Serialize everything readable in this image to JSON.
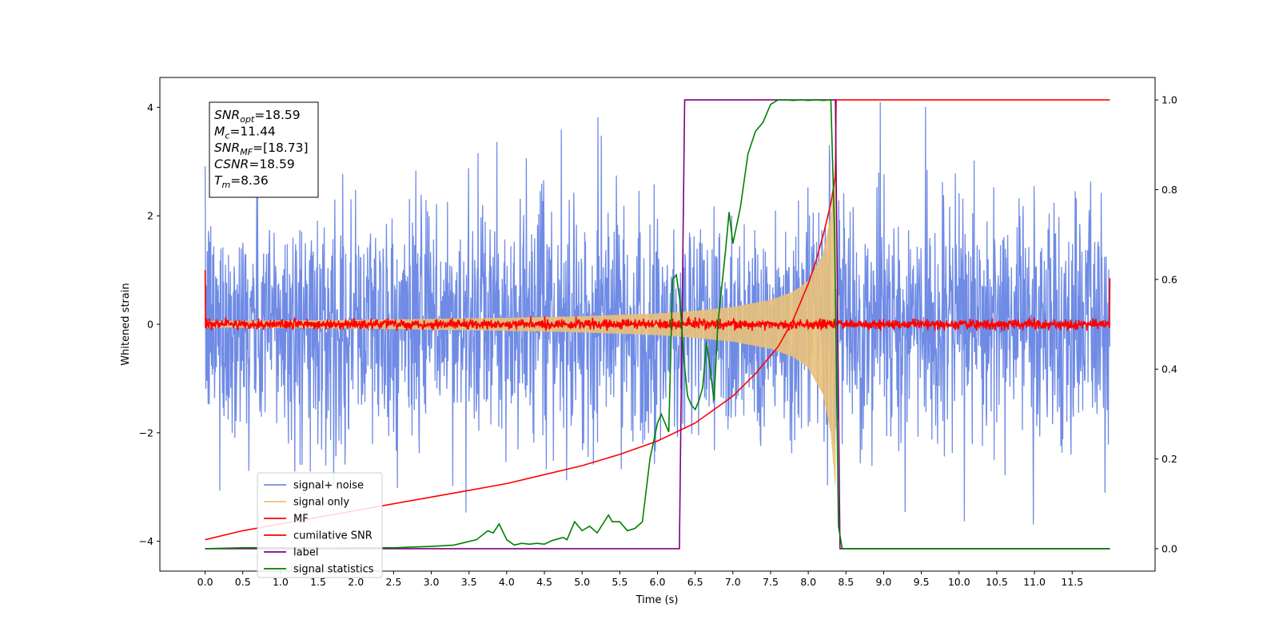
{
  "chart_data": {
    "type": "line",
    "title": "",
    "xlabel": "Time (s)",
    "ylabel": "Whitened strain",
    "y2label": "",
    "xlim": [
      -0.6,
      12.6
    ],
    "ylim": [
      -4.55,
      4.55
    ],
    "y2lim": [
      -0.05,
      1.05
    ],
    "x_ticks": [
      "0.0",
      "0.5",
      "1.0",
      "1.5",
      "2.0",
      "2.5",
      "3.0",
      "3.5",
      "4.0",
      "4.5",
      "5.0",
      "5.5",
      "6.0",
      "6.5",
      "7.0",
      "7.5",
      "8.0",
      "8.5",
      "9.0",
      "9.5",
      "10.0",
      "10.5",
      "11.0",
      "11.5"
    ],
    "y_ticks": [
      "−4",
      "−2",
      "0",
      "2",
      "4"
    ],
    "y2_ticks": [
      "0.0",
      "0.2",
      "0.4",
      "0.6",
      "0.8",
      "1.0"
    ],
    "grid": false,
    "legend_position": "lower-left",
    "info_box": {
      "lines": [
        {
          "sym": "SNR",
          "sub": "opt",
          "value": "=18.59"
        },
        {
          "sym": "M",
          "sub": "c",
          "value": "=11.44"
        },
        {
          "sym": "SNR",
          "sub": "MF",
          "value": "=[18.73]"
        },
        {
          "sym": "CSNR",
          "sub": "",
          "value": "=18.59"
        },
        {
          "sym": "T",
          "sub": "m",
          "value": "=8.36"
        }
      ]
    },
    "series": [
      {
        "name": "signal+ noise",
        "axis": "left",
        "color": "#6f8be5",
        "description_values": {
          "x_start": 0.0,
          "x_end": 12.0,
          "typical_range": [
            -2.5,
            2.5
          ],
          "max_excursion": [
            -4.2,
            4.1
          ]
        }
      },
      {
        "name": "signal only",
        "axis": "left",
        "color": "#e8c07a",
        "envelope": {
          "x": [
            0.0,
            1.0,
            2.0,
            3.0,
            4.0,
            5.0,
            6.0,
            6.5,
            7.0,
            7.5,
            7.8,
            8.0,
            8.2,
            8.3,
            8.36,
            8.4
          ],
          "amp": [
            0.06,
            0.07,
            0.08,
            0.1,
            0.12,
            0.15,
            0.2,
            0.25,
            0.32,
            0.45,
            0.6,
            0.8,
            1.3,
            2.0,
            3.0,
            0.0
          ]
        }
      },
      {
        "name": "MF",
        "axis": "left",
        "color": "#ff0000",
        "description_values": {
          "x_start": 0.0,
          "x_end": 12.0,
          "start_value": 1.0,
          "end_value": 0.85,
          "typical_range": [
            -0.12,
            0.15
          ]
        }
      },
      {
        "name": "cumilative SNR",
        "axis": "right",
        "color": "#ff0000",
        "x": [
          0.0,
          0.5,
          1.0,
          1.5,
          2.0,
          2.5,
          3.0,
          3.5,
          4.0,
          4.5,
          5.0,
          5.5,
          6.0,
          6.5,
          7.0,
          7.3,
          7.6,
          7.8,
          8.0,
          8.1,
          8.2,
          8.3,
          8.36,
          8.37,
          12.0
        ],
        "values": [
          0.02,
          0.04,
          0.055,
          0.07,
          0.085,
          0.1,
          0.115,
          0.13,
          0.145,
          0.165,
          0.185,
          0.21,
          0.24,
          0.28,
          0.34,
          0.39,
          0.45,
          0.51,
          0.59,
          0.64,
          0.7,
          0.77,
          0.83,
          1.0,
          1.0
        ]
      },
      {
        "name": "label",
        "axis": "right",
        "color": "#800080",
        "x": [
          0.0,
          6.29,
          6.36,
          8.36,
          8.42,
          12.0
        ],
        "values": [
          0.0,
          0.0,
          1.0,
          1.0,
          0.0,
          0.0
        ]
      },
      {
        "name": "signal statistics",
        "axis": "right",
        "color": "#008000",
        "x": [
          0.0,
          0.5,
          1.0,
          1.5,
          2.0,
          2.5,
          3.0,
          3.3,
          3.6,
          3.75,
          3.82,
          3.9,
          4.0,
          4.1,
          4.2,
          4.3,
          4.4,
          4.5,
          4.6,
          4.75,
          4.8,
          4.9,
          5.0,
          5.1,
          5.2,
          5.35,
          5.4,
          5.5,
          5.6,
          5.7,
          5.8,
          5.9,
          6.0,
          6.05,
          6.1,
          6.15,
          6.2,
          6.25,
          6.3,
          6.35,
          6.4,
          6.45,
          6.5,
          6.55,
          6.6,
          6.65,
          6.7,
          6.75,
          6.8,
          6.9,
          6.95,
          7.0,
          7.1,
          7.2,
          7.3,
          7.4,
          7.5,
          7.6,
          7.7,
          7.8,
          7.9,
          8.0,
          8.1,
          8.2,
          8.3,
          8.35,
          8.4,
          8.45,
          8.5,
          12.0
        ],
        "values": [
          0.0,
          0.002,
          0.002,
          0.001,
          0.002,
          0.002,
          0.005,
          0.008,
          0.02,
          0.04,
          0.035,
          0.055,
          0.02,
          0.008,
          0.012,
          0.01,
          0.012,
          0.01,
          0.018,
          0.025,
          0.02,
          0.06,
          0.04,
          0.05,
          0.035,
          0.075,
          0.06,
          0.06,
          0.04,
          0.045,
          0.06,
          0.2,
          0.28,
          0.3,
          0.28,
          0.26,
          0.6,
          0.61,
          0.55,
          0.42,
          0.34,
          0.32,
          0.31,
          0.33,
          0.36,
          0.46,
          0.4,
          0.33,
          0.5,
          0.66,
          0.75,
          0.68,
          0.76,
          0.88,
          0.93,
          0.95,
          0.99,
          1.0,
          1.0,
          0.999,
          1.0,
          0.999,
          1.0,
          0.999,
          1.0,
          0.7,
          0.05,
          0.0,
          0.0,
          0.0
        ]
      }
    ]
  }
}
